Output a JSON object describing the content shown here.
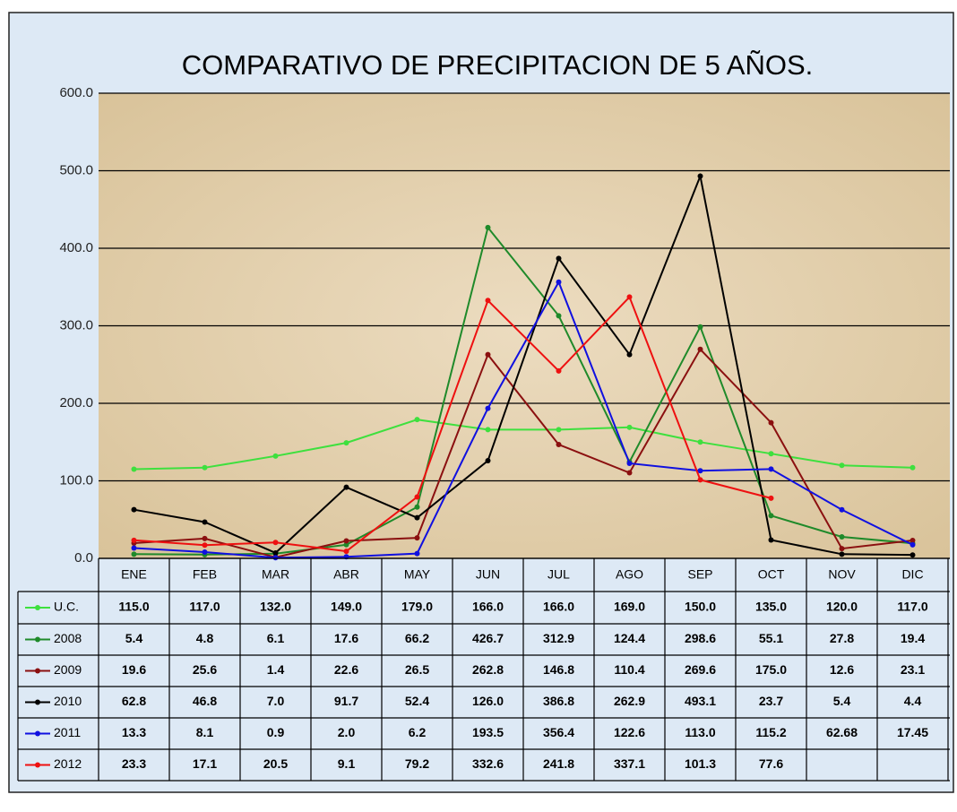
{
  "chart_data": {
    "type": "line",
    "title": "COMPARATIVO  DE PRECIPITACION DE 5 AÑOS.",
    "categories": [
      "ENE",
      "FEB",
      "MAR",
      "ABR",
      "MAY",
      "JUN",
      "JUL",
      "AGO",
      "SEP",
      "OCT",
      "NOV",
      "DIC"
    ],
    "ylim": [
      0,
      600
    ],
    "yticks": [
      {
        "value": 0,
        "label": "0.0"
      },
      {
        "value": 100,
        "label": "100.0"
      },
      {
        "value": 200,
        "label": "200.0"
      },
      {
        "value": 300,
        "label": "300.0"
      },
      {
        "value": 400,
        "label": "400.0"
      },
      {
        "value": 500,
        "label": "500.0"
      },
      {
        "value": 600,
        "label": "600.0"
      }
    ],
    "grid": true,
    "series": [
      {
        "name": "U.C.",
        "color": "#3ee03e",
        "values": [
          115,
          117,
          132,
          149,
          179,
          166,
          166,
          169,
          150,
          135,
          120,
          117
        ],
        "value_labels": [
          "115.0",
          "117.0",
          "132.0",
          "149.0",
          "179.0",
          "166.0",
          "166.0",
          "169.0",
          "150.0",
          "135.0",
          "120.0",
          "117.0"
        ]
      },
      {
        "name": "2008",
        "color": "#1f8a2a",
        "values": [
          5.4,
          4.8,
          6.1,
          17.6,
          66.2,
          426.7,
          312.9,
          124.4,
          298.6,
          55.1,
          27.8,
          19.4
        ],
        "value_labels": [
          "5.4",
          "4.8",
          "6.1",
          "17.6",
          "66.2",
          "426.7",
          "312.9",
          "124.4",
          "298.6",
          "55.1",
          "27.8",
          "19.4"
        ]
      },
      {
        "name": "2009",
        "color": "#8b1010",
        "values": [
          19.6,
          25.6,
          1.4,
          22.6,
          26.5,
          262.8,
          146.8,
          110.4,
          269.6,
          175,
          12.6,
          23.1
        ],
        "value_labels": [
          "19.6",
          "25.6",
          "1.4",
          "22.6",
          "26.5",
          "262.8",
          "146.8",
          "110.4",
          "269.6",
          "175.0",
          "12.6",
          "23.1"
        ]
      },
      {
        "name": "2010",
        "color": "#000000",
        "values": [
          62.8,
          46.8,
          7,
          91.7,
          52.4,
          126,
          386.8,
          262.9,
          493.1,
          23.7,
          5.4,
          4.4
        ],
        "value_labels": [
          "62.8",
          "46.8",
          "7.0",
          "91.7",
          "52.4",
          "126.0",
          "386.8",
          "262.9",
          "493.1",
          "23.7",
          "5.4",
          "4.4"
        ]
      },
      {
        "name": "2011",
        "color": "#1010e0",
        "values": [
          13.3,
          8.1,
          0.9,
          2,
          6.2,
          193.5,
          356.4,
          122.6,
          113,
          115.2,
          62.68,
          17.45
        ],
        "value_labels": [
          "13.3",
          "8.1",
          "0.9",
          "2.0",
          "6.2",
          "193.5",
          "356.4",
          "122.6",
          "113.0",
          "115.2",
          "62.68",
          "17.45"
        ]
      },
      {
        "name": "2012",
        "color": "#ee1010",
        "values": [
          23.3,
          17.1,
          20.5,
          9.1,
          79.2,
          332.6,
          241.8,
          337.1,
          101.3,
          77.6,
          null,
          null
        ],
        "value_labels": [
          "23.3",
          "17.1",
          "20.5",
          "9.1",
          "79.2",
          "332.6",
          "241.8",
          "337.1",
          "101.3",
          "77.6",
          null,
          null
        ]
      }
    ]
  }
}
